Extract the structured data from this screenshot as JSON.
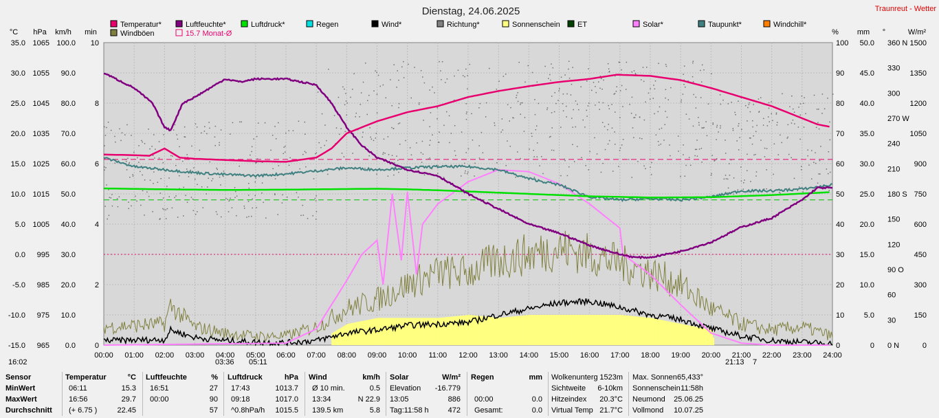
{
  "header": {
    "title": "Dienstag, 24.06.2025",
    "brand": "Traunreut - Wetter"
  },
  "legend": [
    {
      "label": "Temperatur*",
      "color": "#e8006e"
    },
    {
      "label": "Luftfeuchte*",
      "color": "#800080"
    },
    {
      "label": "Luftdruck*",
      "color": "#00e000"
    },
    {
      "label": "Regen",
      "color": "#00e0e0"
    },
    {
      "label": "Wind*",
      "color": "#000000"
    },
    {
      "label": "Richtung*",
      "color": "#808080"
    },
    {
      "label": "Sonnenschein",
      "color": "#ffff80"
    },
    {
      "label": "ET",
      "color": "#004000"
    },
    {
      "label": "Solar*",
      "color": "#ff80ff"
    },
    {
      "label": "Taupunkt*",
      "color": "#408080"
    },
    {
      "label": "Windchill*",
      "color": "#ff8000"
    },
    {
      "label": "Windböen",
      "color": "#808040"
    },
    {
      "label": "15.7 Monat-Ø",
      "color": "#e8006e"
    }
  ],
  "axes": {
    "left_units": [
      "°C",
      "hPa",
      "km/h",
      "min"
    ],
    "right_units": [
      "%",
      "mm",
      "°",
      "W/m²"
    ],
    "temp_ticks": [
      "35.0",
      "30.0",
      "25.0",
      "20.0",
      "15.0",
      "10.0",
      "5.0",
      "0.0",
      "-5.0",
      "-10.0",
      "-15.0"
    ],
    "hpa_ticks": [
      "1065",
      "1055",
      "1045",
      "1035",
      "1025",
      "1015",
      "1005",
      "995",
      "985",
      "975",
      "965"
    ],
    "kmh_ticks": [
      "100.0",
      "90.0",
      "80.0",
      "70.0",
      "60.0",
      "50.0",
      "40.0",
      "30.0",
      "20.0",
      "10.0",
      "0.0"
    ],
    "min_ticks": [
      "10",
      "8",
      "6",
      "4",
      "2",
      "0"
    ],
    "pct_ticks": [
      "100",
      "90",
      "80",
      "70",
      "60",
      "50",
      "40",
      "30",
      "20",
      "10",
      "0"
    ],
    "mm_ticks": [
      "50.0",
      "45.0",
      "40.0",
      "35.0",
      "30.0",
      "25.0",
      "20.0",
      "15.0",
      "10.0",
      "5.0",
      "0"
    ],
    "deg_ticks": [
      "360 N",
      "330",
      "300",
      "270 W",
      "240",
      "210",
      "180 S",
      "150",
      "120",
      "90  O",
      "60",
      "30",
      "0   N"
    ],
    "wm2_ticks": [
      "1500",
      "1350",
      "1200",
      "1050",
      "900",
      "750",
      "600",
      "450",
      "300",
      "150",
      "0"
    ],
    "x_ticks": [
      "00:00",
      "01:00",
      "02:00",
      "03:00",
      "04:00",
      "05:00",
      "06:00",
      "07:00",
      "08:00",
      "09:00",
      "10:00",
      "11:00",
      "12:00",
      "13:00",
      "14:00",
      "15:00",
      "16:00",
      "17:00",
      "18:00",
      "19:00",
      "20:00",
      "21:00",
      "22:00",
      "23:00",
      "24:00"
    ],
    "time_marks": [
      "16:02",
      "03:36",
      "05:11",
      "21:13",
      "7"
    ]
  },
  "chart_data": {
    "type": "line",
    "title": "Dienstag, 24.06.2025",
    "x_range": [
      0,
      24
    ],
    "ylim_temp": [
      -15,
      35
    ],
    "ylim_pct": [
      0,
      100
    ],
    "series": [
      {
        "name": "Temperatur*",
        "unit": "°C",
        "x": [
          0,
          1,
          1.5,
          2,
          2.5,
          3,
          4,
          5,
          6,
          7,
          7.5,
          8,
          8.5,
          9,
          10,
          11,
          12,
          13,
          14,
          15,
          16,
          16.9,
          18,
          19,
          20,
          21,
          22,
          22.5,
          23,
          23.5,
          24
        ],
        "y": [
          16.5,
          16.4,
          16.3,
          17.5,
          16.0,
          15.8,
          15.6,
          15.4,
          15.3,
          16.0,
          17.5,
          20.0,
          21.0,
          22.0,
          23.5,
          24.5,
          26.0,
          27.0,
          27.8,
          28.5,
          29.0,
          29.7,
          29.5,
          28.8,
          27.5,
          26.0,
          24.5,
          23.5,
          22.5,
          21.5,
          21.0
        ]
      },
      {
        "name": "Luftfeuchte*",
        "unit": "%",
        "x": [
          0,
          1,
          1.6,
          2,
          2.2,
          2.6,
          3,
          3.5,
          4,
          4.5,
          5,
          6,
          7,
          7.5,
          8,
          8.5,
          9,
          9.5,
          10,
          11,
          12,
          13,
          14,
          15,
          16,
          17,
          17.5,
          18,
          19,
          20,
          21,
          22,
          23,
          23.5,
          24
        ],
        "y": [
          90,
          85,
          80,
          72,
          71,
          80,
          82,
          85,
          88,
          87,
          88,
          88,
          86,
          80,
          72,
          66,
          62,
          60,
          58,
          56,
          50,
          45,
          40,
          37,
          33,
          30,
          29,
          29,
          31,
          34,
          39,
          42,
          48,
          52,
          52
        ]
      },
      {
        "name": "Luftdruck*",
        "unit": "hPa",
        "x": [
          0,
          2,
          4,
          6,
          8,
          9,
          10,
          11,
          12,
          14,
          16,
          18,
          20,
          22,
          24
        ],
        "y": [
          1016.8,
          1016.5,
          1016.3,
          1016.4,
          1016.6,
          1016.7,
          1016.5,
          1016.2,
          1015.8,
          1015.0,
          1014.2,
          1013.8,
          1013.9,
          1014.6,
          1015.6
        ]
      },
      {
        "name": "Taupunkt*",
        "unit": "°C",
        "x": [
          0,
          1,
          2,
          3,
          4,
          5,
          6,
          7,
          8,
          9,
          10,
          11,
          12,
          13,
          14,
          15,
          16,
          17,
          18,
          19,
          20,
          21,
          22,
          23,
          24
        ],
        "y": [
          16.0,
          14.5,
          14.0,
          13.5,
          13.2,
          13.0,
          13.3,
          13.8,
          14.3,
          14.0,
          14.3,
          14.5,
          14.5,
          14.0,
          12.5,
          11.5,
          9.5,
          9.0,
          9.2,
          9.0,
          9.5,
          10.5,
          10.5,
          10.8,
          11.5
        ]
      },
      {
        "name": "Solar*",
        "unit": "W/m²",
        "x": [
          0,
          6,
          7,
          7.5,
          8,
          8.5,
          9,
          9.2,
          9.5,
          9.8,
          10,
          10.3,
          10.5,
          11,
          12,
          13,
          14,
          15,
          16,
          17,
          17.1,
          18,
          19,
          20,
          21,
          22,
          24
        ],
        "y": [
          0,
          10,
          80,
          200,
          320,
          450,
          520,
          300,
          750,
          420,
          760,
          350,
          600,
          700,
          810,
          870,
          860,
          800,
          700,
          580,
          450,
          350,
          200,
          60,
          10,
          0,
          0
        ]
      },
      {
        "name": "Wind*",
        "unit": "km/h",
        "x": [
          0,
          2,
          2.2,
          3,
          4,
          5,
          6,
          7,
          8,
          9,
          10,
          11,
          12,
          13,
          14,
          15,
          16,
          17,
          18,
          19,
          20,
          21,
          22,
          23,
          24
        ],
        "y": [
          1.5,
          1.8,
          5.0,
          2.5,
          1.5,
          1.0,
          0.8,
          1.5,
          4.0,
          5.0,
          6.5,
          7.0,
          7.5,
          10.0,
          12.0,
          14.0,
          14.5,
          12.5,
          10.0,
          8.5,
          5.5,
          3.0,
          1.5,
          1.0,
          0.5
        ]
      },
      {
        "name": "Windböen",
        "unit": "km/h",
        "x": [
          0,
          2,
          2.2,
          3,
          4,
          5,
          6,
          7,
          8,
          9,
          10,
          11,
          12,
          13,
          14,
          15,
          16,
          17,
          18,
          19,
          20,
          21,
          22,
          23,
          24
        ],
        "y": [
          6,
          7,
          13,
          6,
          4,
          3,
          3,
          6,
          12,
          15,
          20,
          24,
          24,
          28,
          30,
          32,
          30,
          27,
          24,
          20,
          12,
          7,
          5,
          6,
          3
        ]
      },
      {
        "name": "Sonnenschein",
        "unit": "min",
        "x": [
          7.5,
          8,
          9,
          10,
          11,
          12,
          13,
          14,
          15,
          16,
          17,
          18,
          19,
          20,
          20.1
        ],
        "y": [
          0.4,
          0.7,
          0.9,
          0.9,
          0.9,
          1.0,
          0.9,
          1.0,
          1.0,
          1.0,
          1.0,
          0.9,
          0.7,
          0.5,
          0
        ]
      }
    ],
    "reference_lines": [
      {
        "name": "15.7 Monat-Ø",
        "value": 15.7,
        "unit": "°C"
      },
      {
        "value": 1013.0,
        "unit": "hPa"
      },
      {
        "value": 30,
        "unit": "%"
      }
    ]
  },
  "stats": {
    "headers": {
      "sensor": "Sensor",
      "temp": "Temperatur",
      "temp_u": "°C",
      "hum": "Luftfeuchte",
      "hum_u": "%",
      "press": "Luftdruck",
      "press_u": "hPa",
      "wind": "Wind",
      "wind_u": "km/h",
      "solar": "Solar",
      "solar_u": "W/m²",
      "rain": "Regen",
      "rain_u": "mm"
    },
    "rows": [
      {
        "label": "MinWert",
        "t_time": "06:11",
        "t_val": "15.3",
        "h_time": "16:51",
        "h_val": "27",
        "p_time": "17:43",
        "p_val": "1013.7",
        "w_label": "Ø 10 min.",
        "w_val": "0.5",
        "s_label": "Elevation",
        "s_val": "-16.779",
        "r_label": "",
        "r_val": ""
      },
      {
        "label": "MaxWert",
        "t_time": "16:56",
        "t_val": "29.7",
        "h_time": "00:00",
        "h_val": "90",
        "p_time": "09:18",
        "p_val": "1017.0",
        "w_label": "13:34",
        "w_val": "N 22.9",
        "s_label": "13:05",
        "s_val": "886",
        "r_label": "00:00",
        "r_val": "0.0"
      },
      {
        "label": "Durchschnitt",
        "t_time": "(+ 6.75 )",
        "t_val": "22.45",
        "h_time": "",
        "h_val": "57",
        "p_time": "^0.8hPa/h",
        "p_val": "1015.5",
        "w_label": "139.5 km",
        "w_val": "5.8",
        "s_label": "Tag:11:58 h",
        "s_val": "472",
        "r_label": "Gesamt:",
        "r_val": "0.0"
      }
    ],
    "extra": [
      {
        "label": "Wolkenunterg",
        "value": "1523m"
      },
      {
        "label": "Sichtweite",
        "value": "6-10km"
      },
      {
        "label": "Hitzeindex",
        "value": "20.3°C"
      },
      {
        "label": "Virtual Temp",
        "value": "21.7°C"
      }
    ],
    "extra2": [
      {
        "label": "Max. Sonnen",
        "value": "65,433°"
      },
      {
        "label": "Sonnenschein",
        "value": "11:58h"
      },
      {
        "label": "Neumond",
        "value": "25.06.25"
      },
      {
        "label": "Vollmond",
        "value": "10.07.25"
      }
    ]
  }
}
